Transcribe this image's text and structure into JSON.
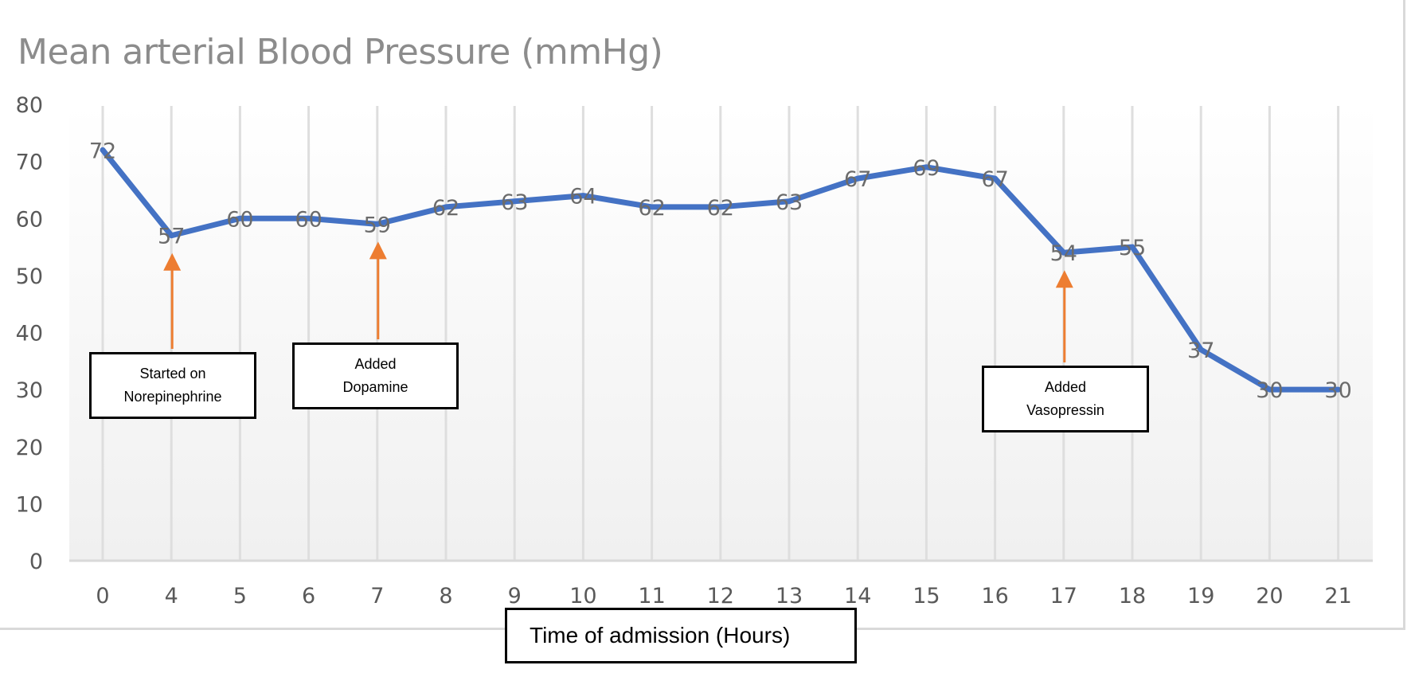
{
  "chart_data": {
    "type": "line",
    "title": "Mean arterial Blood Pressure (mmHg)",
    "xlabel": "Time of admission (Hours)",
    "ylabel": "",
    "categories": [
      "0",
      "4",
      "5",
      "6",
      "7",
      "8",
      "9",
      "10",
      "11",
      "12",
      "13",
      "14",
      "15",
      "16",
      "17",
      "18",
      "19",
      "20",
      "21"
    ],
    "series": [
      {
        "name": "Mean arterial Blood Pressure",
        "values": [
          72,
          57,
          60,
          60,
          59,
          62,
          63,
          64,
          62,
          62,
          63,
          67,
          69,
          67,
          54,
          55,
          37,
          30,
          30
        ],
        "color": "#4472c4"
      }
    ],
    "ylim": [
      0,
      80
    ],
    "yticks": [
      "0",
      "10",
      "20",
      "30",
      "40",
      "50",
      "60",
      "70",
      "80"
    ],
    "grid": "vertical",
    "data_labels": true,
    "annotations": [
      {
        "category": "4",
        "lines": [
          "Started on",
          "Norepinephrine"
        ],
        "arrow_color": "#ed7d31"
      },
      {
        "category": "7",
        "lines": [
          "Added",
          "Dopamine"
        ],
        "arrow_color": "#ed7d31"
      },
      {
        "category": "17",
        "lines": [
          "Added",
          "Vasopressin"
        ],
        "arrow_color": "#ed7d31"
      }
    ]
  }
}
